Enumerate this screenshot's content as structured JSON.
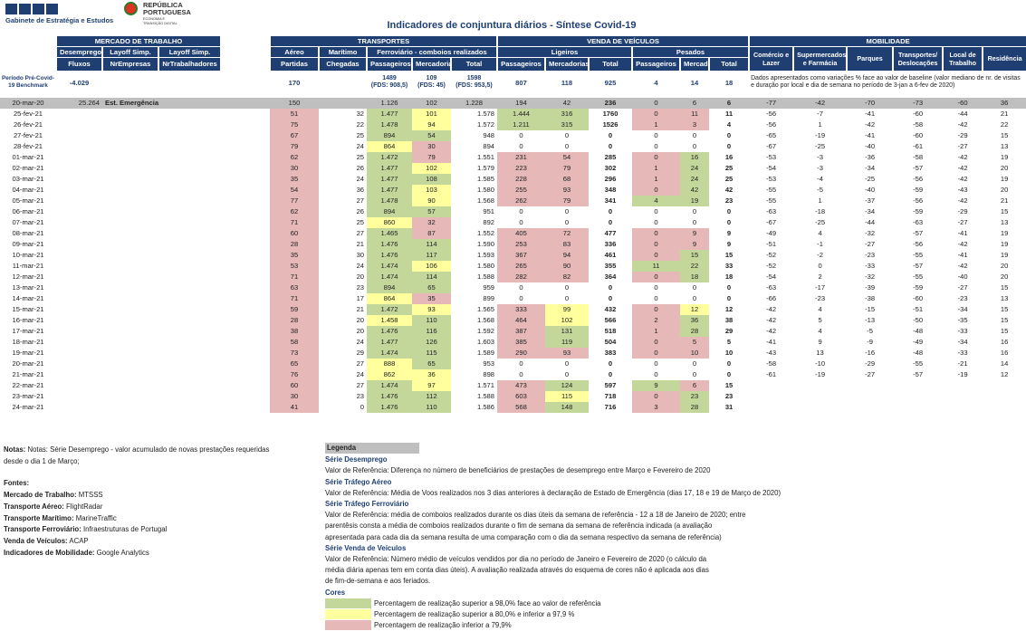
{
  "header": {
    "org": "Gabinete de Estratégia e Estudos",
    "gov_line1": "REPÚBLICA",
    "gov_line2": "PORTUGUESA",
    "gov_sub1": "ECONOMIA E",
    "gov_sub2": "TRANSIÇÃO DIGITAL",
    "title": "Indicadores de conjuntura diários - Síntese Covid-19"
  },
  "groups": {
    "mercado": "MERCADO DE TRABALHO",
    "transportes": "TRANSPORTES",
    "vendas": "VENDA DE VEÍCULOS",
    "mobilidade": "MOBILIDADE"
  },
  "sub": {
    "desemprego": "Desemprego",
    "layoff1": "Layoff Simp.",
    "layoff2": "Layoff Simp.",
    "aereo": "Aéreo",
    "maritimo": "Marítimo",
    "ferroviario": "Ferroviário - comboios realizados",
    "ligeiros": "Ligeiros",
    "pesados": "Pesados"
  },
  "mob_headers": [
    "Comércio e Lazer",
    "Supermercados e Farmácia",
    "Parques",
    "Transportes/ Deslocações",
    "Local de Trabalho",
    "Residência"
  ],
  "cols": [
    "Fluxos",
    "NrEmpresas",
    "NrTrabalhadores",
    "Partidas",
    "Chegadas",
    "Passageiros",
    "Mercadorias",
    "Total",
    "Passageiros",
    "Mercadorias",
    "Total",
    "Passageiros",
    "Mercadorias",
    "Total"
  ],
  "bench": {
    "label1": "Período Pré-Covid-",
    "label2": "19 Benchmark",
    "desemprego": "-4.029",
    "aereo": "170",
    "pass_v": "1489",
    "pass_f": "(FDS: 908,5)",
    "merc_v": "109",
    "merc_f": "(FDS: 45)",
    "tot_v": "1598",
    "tot_f": "(FDS: 953,5)",
    "lp": "807",
    "lm": "118",
    "lt": "925",
    "pp": "4",
    "pm": "14",
    "pt": "18",
    "mob_note": "Dados apresentados como variações % face ao valor de baseline (valor mediano de nr. de visitas e duração por local e dia de semana no período de 3-jan a 6-fev de 2020)"
  },
  "ref": {
    "date": "20-mar-20",
    "desemprego": "25.264",
    "label": "Est. Emergência",
    "aereo": "150",
    "fp": "1.126",
    "fm": "102",
    "ft": "1.228",
    "lp": "194",
    "lm": "42",
    "lt": "236",
    "pp": "0",
    "pm": "6",
    "pt": "6",
    "mob": [
      "-77",
      "-42",
      "-70",
      "-73",
      "-60",
      "36"
    ]
  },
  "rows": [
    [
      "25-fev-21",
      "51",
      "32",
      "1.477",
      "101",
      "1.578",
      "1.444",
      "316",
      "1760",
      "0",
      "11",
      "11",
      "-56",
      "-7",
      "-41",
      "-60",
      "-44",
      "21"
    ],
    [
      "26-fev-21",
      "75",
      "22",
      "1.478",
      "94",
      "1.572",
      "1.211",
      "315",
      "1526",
      "1",
      "3",
      "4",
      "-56",
      "1",
      "-42",
      "-58",
      "-42",
      "22"
    ],
    [
      "27-fev-21",
      "67",
      "25",
      "894",
      "54",
      "948",
      "0",
      "0",
      "0",
      "0",
      "0",
      "0",
      "-65",
      "-19",
      "-41",
      "-60",
      "-29",
      "15"
    ],
    [
      "28-fev-21",
      "79",
      "24",
      "864",
      "30",
      "894",
      "0",
      "0",
      "0",
      "0",
      "0",
      "0",
      "-67",
      "-25",
      "-40",
      "-61",
      "-27",
      "13"
    ],
    [
      "01-mar-21",
      "62",
      "25",
      "1.472",
      "79",
      "1.551",
      "231",
      "54",
      "285",
      "0",
      "16",
      "16",
      "-53",
      "-3",
      "-36",
      "-58",
      "-42",
      "19"
    ],
    [
      "02-mar-21",
      "30",
      "26",
      "1.477",
      "102",
      "1.579",
      "223",
      "79",
      "302",
      "1",
      "24",
      "25",
      "-54",
      "-3",
      "-34",
      "-57",
      "-42",
      "20"
    ],
    [
      "03-mar-21",
      "35",
      "24",
      "1.477",
      "108",
      "1.585",
      "228",
      "68",
      "296",
      "1",
      "24",
      "25",
      "-53",
      "-4",
      "-25",
      "-56",
      "-42",
      "19"
    ],
    [
      "04-mar-21",
      "54",
      "36",
      "1.477",
      "103",
      "1.580",
      "255",
      "93",
      "348",
      "0",
      "42",
      "42",
      "-55",
      "-5",
      "-40",
      "-59",
      "-43",
      "20"
    ],
    [
      "05-mar-21",
      "77",
      "27",
      "1.478",
      "90",
      "1.568",
      "262",
      "79",
      "341",
      "4",
      "19",
      "23",
      "-55",
      "1",
      "-37",
      "-56",
      "-42",
      "21"
    ],
    [
      "06-mar-21",
      "62",
      "26",
      "894",
      "57",
      "951",
      "0",
      "0",
      "0",
      "0",
      "0",
      "0",
      "-63",
      "-18",
      "-34",
      "-59",
      "-29",
      "15"
    ],
    [
      "07-mar-21",
      "71",
      "25",
      "860",
      "32",
      "892",
      "0",
      "0",
      "0",
      "0",
      "0",
      "0",
      "-67",
      "-25",
      "-44",
      "-63",
      "-27",
      "13"
    ],
    [
      "08-mar-21",
      "60",
      "27",
      "1.465",
      "87",
      "1.552",
      "405",
      "72",
      "477",
      "0",
      "9",
      "9",
      "-49",
      "4",
      "-32",
      "-57",
      "-41",
      "19"
    ],
    [
      "09-mar-21",
      "28",
      "21",
      "1.476",
      "114",
      "1.590",
      "253",
      "83",
      "336",
      "0",
      "9",
      "9",
      "-51",
      "-1",
      "-27",
      "-56",
      "-42",
      "19"
    ],
    [
      "10-mar-21",
      "35",
      "30",
      "1.476",
      "117",
      "1.593",
      "367",
      "94",
      "461",
      "0",
      "15",
      "15",
      "-52",
      "-2",
      "-23",
      "-55",
      "-41",
      "19"
    ],
    [
      "11-mar-21",
      "53",
      "24",
      "1.474",
      "106",
      "1.580",
      "265",
      "90",
      "355",
      "11",
      "22",
      "33",
      "-52",
      "0",
      "-33",
      "-57",
      "-42",
      "20"
    ],
    [
      "12-mar-21",
      "71",
      "20",
      "1.474",
      "114",
      "1.588",
      "282",
      "82",
      "364",
      "0",
      "18",
      "18",
      "-54",
      "2",
      "-32",
      "-55",
      "-40",
      "20"
    ],
    [
      "13-mar-21",
      "63",
      "23",
      "894",
      "65",
      "959",
      "0",
      "0",
      "0",
      "0",
      "0",
      "0",
      "-63",
      "-17",
      "-39",
      "-59",
      "-27",
      "15"
    ],
    [
      "14-mar-21",
      "71",
      "17",
      "864",
      "35",
      "899",
      "0",
      "0",
      "0",
      "0",
      "0",
      "0",
      "-66",
      "-23",
      "-38",
      "-60",
      "-23",
      "13"
    ],
    [
      "15-mar-21",
      "59",
      "21",
      "1.472",
      "93",
      "1.565",
      "333",
      "99",
      "432",
      "0",
      "12",
      "12",
      "-42",
      "4",
      "-15",
      "-51",
      "-34",
      "15"
    ],
    [
      "16-mar-21",
      "28",
      "20",
      "1.458",
      "110",
      "1.568",
      "464",
      "102",
      "566",
      "2",
      "36",
      "38",
      "-42",
      "5",
      "-13",
      "-50",
      "-35",
      "15"
    ],
    [
      "17-mar-21",
      "38",
      "20",
      "1.476",
      "116",
      "1.592",
      "387",
      "131",
      "518",
      "1",
      "28",
      "29",
      "-42",
      "4",
      "-5",
      "-48",
      "-33",
      "15"
    ],
    [
      "18-mar-21",
      "58",
      "24",
      "1.477",
      "126",
      "1.603",
      "385",
      "119",
      "504",
      "0",
      "5",
      "5",
      "-41",
      "9",
      "-9",
      "-49",
      "-34",
      "16"
    ],
    [
      "19-mar-21",
      "73",
      "29",
      "1.474",
      "115",
      "1.589",
      "290",
      "93",
      "383",
      "0",
      "10",
      "10",
      "-43",
      "13",
      "-16",
      "-48",
      "-33",
      "16"
    ],
    [
      "20-mar-21",
      "65",
      "27",
      "888",
      "65",
      "953",
      "0",
      "0",
      "0",
      "0",
      "0",
      "0",
      "-58",
      "-10",
      "-29",
      "-55",
      "-21",
      "14"
    ],
    [
      "21-mar-21",
      "76",
      "24",
      "862",
      "36",
      "898",
      "0",
      "0",
      "0",
      "0",
      "0",
      "0",
      "-61",
      "-19",
      "-27",
      "-57",
      "-19",
      "12"
    ],
    [
      "22-mar-21",
      "60",
      "27",
      "1.474",
      "97",
      "1.571",
      "473",
      "124",
      "597",
      "9",
      "6",
      "15",
      "",
      "",
      "",
      "",
      "",
      ""
    ],
    [
      "23-mar-21",
      "30",
      "23",
      "1.476",
      "112",
      "1.588",
      "603",
      "115",
      "718",
      "0",
      "23",
      "23",
      "",
      "",
      "",
      "",
      "",
      ""
    ],
    [
      "24-mar-21",
      "41",
      "0",
      "1.476",
      "110",
      "1.586",
      "568",
      "148",
      "716",
      "3",
      "28",
      "31",
      "",
      "",
      "",
      "",
      "",
      ""
    ]
  ],
  "colors": {
    "green": "#c4d79b",
    "yellow": "#ffff9d",
    "red": "#e6b8b8",
    "navy": "#1f3f73"
  },
  "notes": {
    "n1": "Notas: Série Desemprego - valor acumulado de novas prestações requeridas",
    "n2": "desde o dia 1 de Março;",
    "fontes": "Fontes:",
    "f1k": "Mercado de Trabalho:",
    "f1v": " MTSSS",
    "f2k": "Transporte Aéreo:",
    "f2v": " FlightRadar",
    "f3k": "Transporte Marítimo:",
    "f3v": " MarineTraffic",
    "f4k": "Transporte Ferroviário:",
    "f4v": " Infraestruturas de Portugal",
    "f5k": "Venda de Veículos:",
    "f5v": " ACAP",
    "f6k": "Indicadores de Mobilidade:",
    "f6v": " Google Analytics"
  },
  "legend": {
    "title": "Legenda",
    "s1": "Série Desemprego",
    "s1t": "Valor de Referência: Diferença no número de beneficiários de prestações de desemprego entre Março e Fevereiro de 2020",
    "s2": "Série Tráfego Aéreo",
    "s2t": "Valor de Referência: Média de Voos realizados nos 3 dias anteriores à declaração de Estado de Emergência (dias 17, 18 e 19 de Março de 2020)",
    "s3": "Série Tráfego Ferroviário",
    "s3a": "Valor de Referência: média de comboios realizados durante os dias úteis da semana de referência - 12 a 18 de Janeiro de 2020; entre",
    "s3b": "parentêsis consta a média de comboios realizados durante o fim de semana da semana de referência indicada (a avaliação",
    "s3c": "apresentada para cada dia da semana resulta de uma comparação com o dia da semana respectivo da semana de referência)",
    "s4": "Série Venda de Veículos",
    "s4a": "Valor de Referência: Número médio de veículos vendidos por dia no período de Janeiro e Fevereiro de 2020 (o cálculo da",
    "s4b": "média diária apenas tem em conta dias úteis). A avaliação realizada através do esquema de cores não é aplicada aos dias",
    "s4c": "de fim-de-semana e aos feriados.",
    "cores": "Cores",
    "c1": "Percentagem de realização superior a 98,0% face ao valor de referência",
    "c2": "Percentagem de realização superior a 80,0% e inferior a 97,9 %",
    "c3": "Percentagem de realização inferior a 79,9%"
  }
}
